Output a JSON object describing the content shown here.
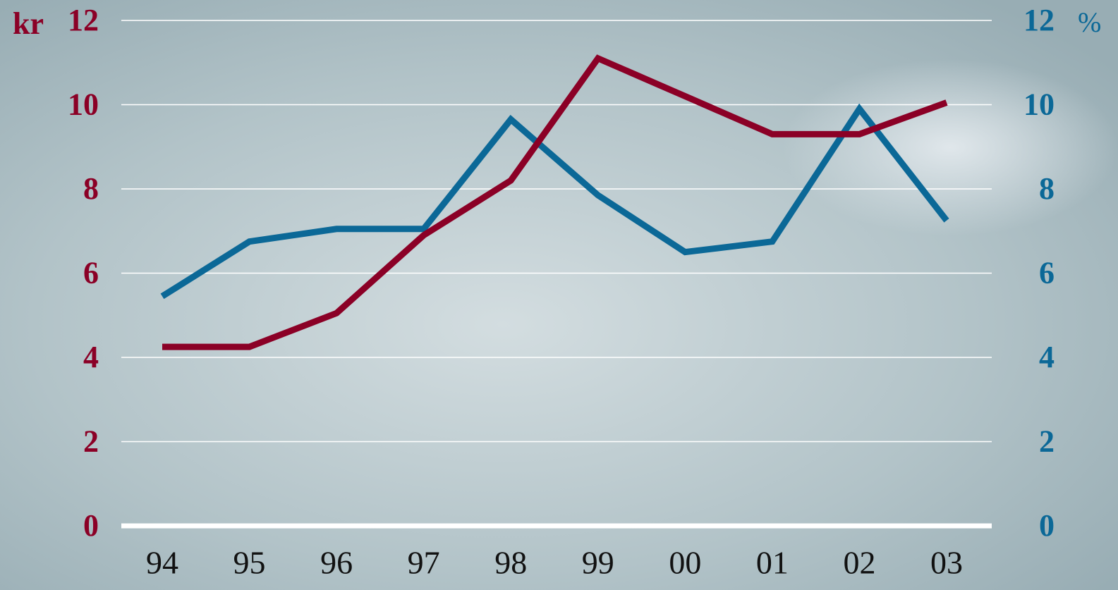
{
  "chart_data": {
    "type": "line",
    "y_label": "kr",
    "y2_label": "%",
    "categories": [
      "94",
      "95",
      "96",
      "97",
      "98",
      "99",
      "00",
      "01",
      "02",
      "03"
    ],
    "series": [
      {
        "name": "kr",
        "color": "#8b0026",
        "values": [
          4.25,
          4.25,
          5.05,
          6.9,
          8.2,
          11.1,
          10.2,
          9.3,
          9.3,
          10.05
        ]
      },
      {
        "name": "%",
        "color": "#0b6897",
        "axis": "y2",
        "values": [
          5.45,
          6.75,
          7.05,
          7.05,
          9.65,
          7.85,
          6.5,
          6.75,
          9.9,
          7.25
        ]
      }
    ],
    "ylim": [
      0,
      12
    ],
    "yticks": [
      0,
      2,
      4,
      6,
      8,
      10,
      12
    ],
    "y2lim": [
      0,
      12
    ],
    "y2ticks": [
      0,
      2,
      4,
      6,
      8,
      10,
      12
    ],
    "grid": true
  }
}
